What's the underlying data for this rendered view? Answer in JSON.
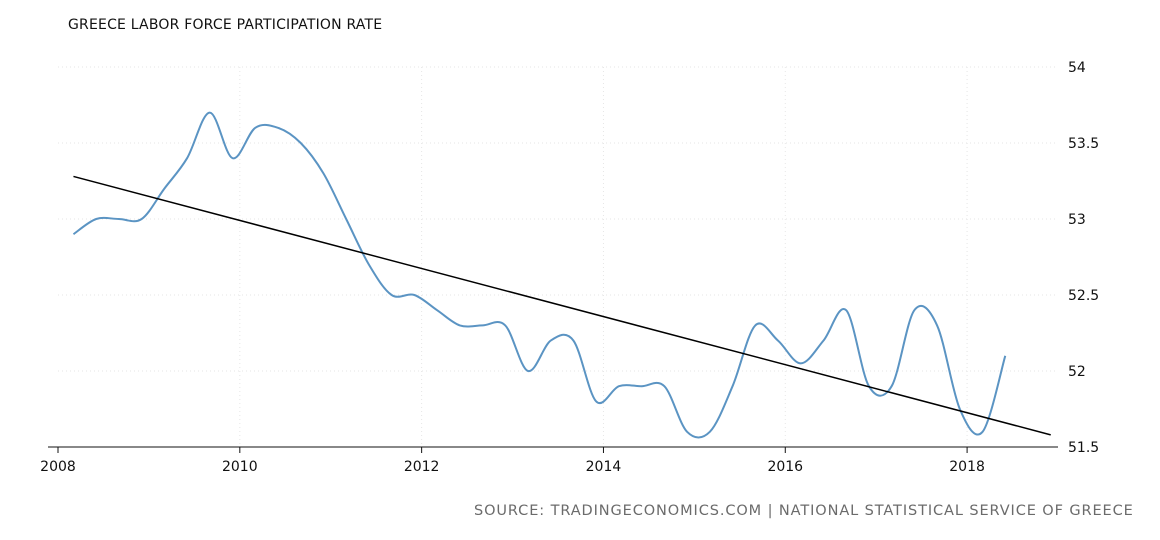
{
  "page": {
    "title": "GREECE LABOR FORCE PARTICIPATION RATE",
    "source": "SOURCE: TRADINGECONOMICS.COM | NATIONAL STATISTICAL SERVICE OF GREECE"
  },
  "colors": {
    "series": "#5b94c3",
    "trend": "#000000",
    "grid": "#e6e6e6",
    "axis": "#111111"
  },
  "chart_data": {
    "type": "line",
    "title": "GREECE LABOR FORCE PARTICIPATION RATE",
    "xlabel": "",
    "ylabel": "",
    "xlim": [
      2008.0,
      2019.0
    ],
    "ylim": [
      51.5,
      54.0
    ],
    "x_ticks": [
      2008,
      2010,
      2012,
      2014,
      2016,
      2018
    ],
    "x_tick_labels": [
      "2008",
      "2010",
      "2012",
      "2014",
      "2016",
      "2018"
    ],
    "y_ticks": [
      51.5,
      52.0,
      52.5,
      53.0,
      53.5,
      54.0
    ],
    "y_tick_labels": [
      "51.5",
      "52",
      "52.5",
      "53",
      "53.5",
      "54"
    ],
    "y_axis_side": "right",
    "grid": "dotted",
    "series": [
      {
        "name": "Labor Force Participation Rate",
        "x": [
          2008.17,
          2008.42,
          2008.67,
          2008.92,
          2009.17,
          2009.42,
          2009.67,
          2009.92,
          2010.17,
          2010.42,
          2010.67,
          2010.92,
          2011.17,
          2011.42,
          2011.67,
          2011.92,
          2012.17,
          2012.42,
          2012.67,
          2012.92,
          2013.17,
          2013.42,
          2013.67,
          2013.92,
          2014.17,
          2014.42,
          2014.67,
          2014.92,
          2015.17,
          2015.42,
          2015.67,
          2015.92,
          2016.17,
          2016.42,
          2016.67,
          2016.92,
          2017.17,
          2017.42,
          2017.67,
          2017.92,
          2018.17,
          2018.42
        ],
        "values": [
          52.9,
          53.0,
          53.0,
          53.0,
          53.2,
          53.4,
          53.7,
          53.4,
          53.6,
          53.6,
          53.5,
          53.3,
          53.0,
          52.7,
          52.5,
          52.5,
          52.4,
          52.3,
          52.3,
          52.3,
          52.0,
          52.2,
          52.2,
          51.8,
          51.9,
          51.9,
          51.9,
          51.6,
          51.6,
          51.9,
          52.3,
          52.2,
          52.05,
          52.2,
          52.4,
          51.9,
          51.9,
          52.4,
          52.3,
          51.75,
          51.6,
          52.1
        ]
      },
      {
        "name": "Trend",
        "x": [
          2008.17,
          2018.92
        ],
        "values": [
          53.28,
          51.58
        ]
      }
    ]
  }
}
